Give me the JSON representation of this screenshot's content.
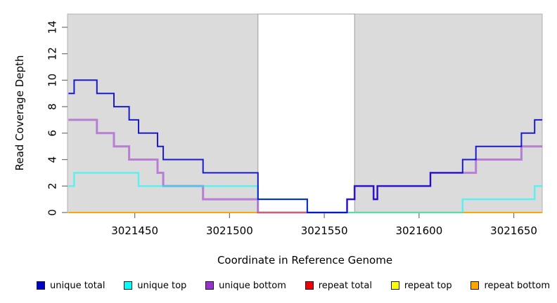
{
  "chart_data": {
    "type": "line",
    "subtype": "step-coverage",
    "title": "",
    "xlabel": "Coordinate in Reference Genome",
    "ylabel": "Read Coverage Depth",
    "xlim": [
      3021414.5,
      3021665
    ],
    "ylim": [
      0,
      15
    ],
    "x_ticks": [
      3021450,
      3021500,
      3021550,
      3021600,
      3021650
    ],
    "y_ticks": [
      0,
      2,
      4,
      6,
      8,
      10,
      12,
      14
    ],
    "grid": false,
    "legend_position": "bottom",
    "panel_background": "#dbdbdb",
    "highlight_band": {
      "start": 3021515,
      "end": 3021566,
      "fill": "#ffffff"
    },
    "series": [
      {
        "name": "unique total",
        "color": "#0000cc",
        "x_end": 3021665,
        "steps": [
          [
            3021415,
            9
          ],
          [
            3021418,
            10
          ],
          [
            3021430,
            9
          ],
          [
            3021439,
            8
          ],
          [
            3021447,
            7
          ],
          [
            3021452,
            6
          ],
          [
            3021462,
            5
          ],
          [
            3021465,
            4
          ],
          [
            3021486,
            3
          ],
          [
            3021515,
            1
          ],
          [
            3021541,
            0
          ],
          [
            3021562,
            1
          ],
          [
            3021566,
            2
          ],
          [
            3021576,
            1
          ],
          [
            3021578,
            2
          ],
          [
            3021606,
            3
          ],
          [
            3021623,
            4
          ],
          [
            3021630,
            5
          ],
          [
            3021654,
            6
          ],
          [
            3021661,
            7
          ]
        ]
      },
      {
        "name": "unique top",
        "color": "#00ffff",
        "x_end": 3021665,
        "steps": [
          [
            3021415,
            2
          ],
          [
            3021418,
            3
          ],
          [
            3021452,
            2
          ],
          [
            3021515,
            1
          ],
          [
            3021541,
            0
          ],
          [
            3021623,
            1
          ],
          [
            3021661,
            2
          ]
        ]
      },
      {
        "name": "unique bottom",
        "color": "#9932cc",
        "x_end": 3021665,
        "steps": [
          [
            3021415,
            7
          ],
          [
            3021430,
            6
          ],
          [
            3021439,
            5
          ],
          [
            3021447,
            4
          ],
          [
            3021462,
            3
          ],
          [
            3021465,
            2
          ],
          [
            3021486,
            1
          ],
          [
            3021515,
            0
          ],
          [
            3021562,
            1
          ],
          [
            3021566,
            2
          ],
          [
            3021576,
            1
          ],
          [
            3021578,
            2
          ],
          [
            3021606,
            3
          ],
          [
            3021630,
            4
          ],
          [
            3021654,
            5
          ]
        ]
      },
      {
        "name": "repeat total",
        "color": "#ee0000",
        "x_end": 3021665,
        "steps": [
          [
            3021415,
            0
          ]
        ]
      },
      {
        "name": "repeat top",
        "color": "#ffff00",
        "x_end": 3021665,
        "steps": [
          [
            3021415,
            0
          ]
        ]
      },
      {
        "name": "repeat bottom",
        "color": "#ffa500",
        "x_end": 3021665,
        "steps": [
          [
            3021415,
            0
          ]
        ]
      }
    ]
  }
}
